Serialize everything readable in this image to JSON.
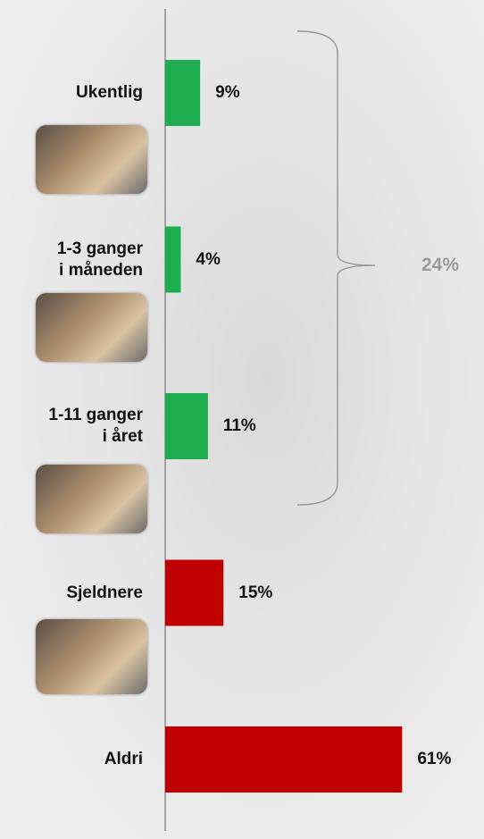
{
  "chart_data": {
    "type": "bar",
    "categories": [
      "Ukentlig",
      "1-3 ganger\ni måneden",
      "1-11 ganger\ni året",
      "Sjeldnere",
      "Aldri"
    ],
    "values": [
      9,
      4,
      11,
      15,
      61
    ],
    "value_labels": [
      "9%",
      "4%",
      "11%",
      "15%",
      "61%"
    ],
    "colors": [
      "#1fae4f",
      "#1fae4f",
      "#1fae4f",
      "#c00000",
      "#c00000"
    ],
    "bracket_label": "24%"
  }
}
